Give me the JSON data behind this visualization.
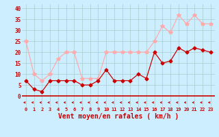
{
  "xlabel": "Vent moyen/en rafales ( km/h )",
  "x": [
    0,
    1,
    2,
    3,
    4,
    5,
    6,
    7,
    8,
    9,
    10,
    11,
    12,
    13,
    14,
    15,
    16,
    17,
    18,
    19,
    20,
    21,
    22,
    23
  ],
  "vent_moyen": [
    7,
    3,
    2,
    7,
    7,
    7,
    7,
    5,
    5,
    7,
    12,
    7,
    7,
    7,
    10,
    8,
    20,
    15,
    16,
    22,
    20,
    22,
    21,
    20
  ],
  "vent_rafales": [
    25,
    10,
    7,
    10,
    17,
    20,
    20,
    8,
    8,
    8,
    20,
    20,
    20,
    20,
    20,
    20,
    25,
    32,
    29,
    37,
    33,
    37,
    33,
    33
  ],
  "color_moyen": "#cc0000",
  "color_rafales": "#ffaaaa",
  "bg_color": "#cceeff",
  "grid_color": "#aacccc",
  "ylim": [
    -5,
    42
  ],
  "yticks": [
    0,
    5,
    10,
    15,
    20,
    25,
    30,
    35,
    40
  ],
  "label_color": "#cc0000",
  "axis_line_color": "#cc0000"
}
